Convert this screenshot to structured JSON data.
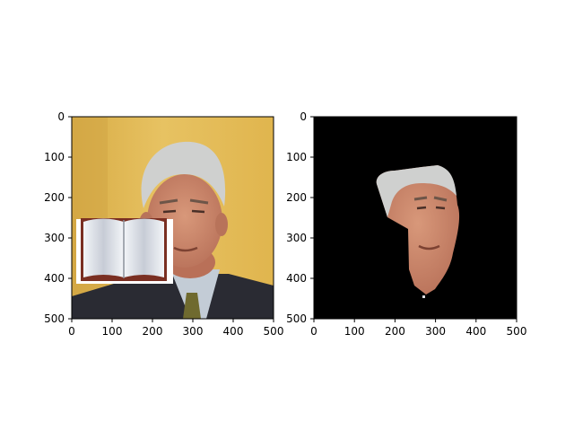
{
  "figure": {
    "background": "#ffffff"
  },
  "chart_data": [
    {
      "type": "image",
      "title": "",
      "xlabel": "",
      "ylabel": "",
      "xlim": [
        0,
        500
      ],
      "ylim": [
        500,
        0
      ],
      "xticks": [
        0,
        100,
        200,
        300,
        400,
        500
      ],
      "yticks": [
        0,
        100,
        200,
        300,
        400,
        500
      ],
      "content": "photo-with-book-overlay",
      "colors": {
        "background": "#e2b84f",
        "hair": "#cfd0cf",
        "skin": "#c9876a",
        "suit": "#2a2b33",
        "shirt": "#c3ccd6",
        "tie": "#6f6a2f"
      }
    },
    {
      "type": "image",
      "title": "",
      "xlabel": "",
      "ylabel": "",
      "xlim": [
        0,
        500
      ],
      "ylim": [
        500,
        0
      ],
      "xticks": [
        0,
        100,
        200,
        300,
        400,
        500
      ],
      "yticks": [
        0,
        100,
        200,
        300,
        400,
        500
      ],
      "content": "segmented-face-mask",
      "colors": {
        "background": "#000000",
        "hair": "#cfd0cf",
        "skin": "#c9876a"
      }
    }
  ]
}
